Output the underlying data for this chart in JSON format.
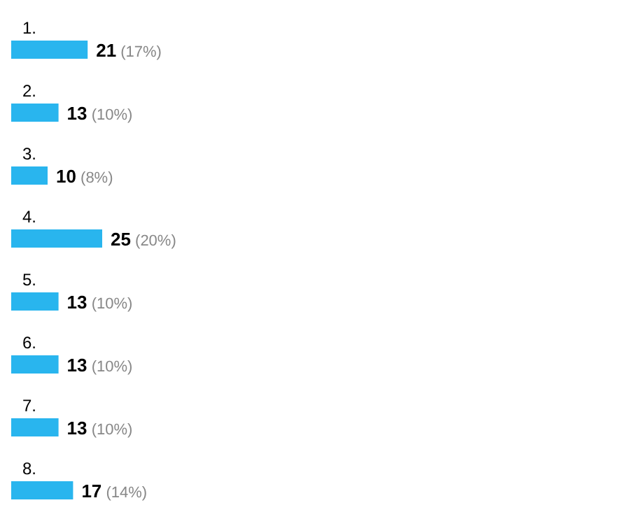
{
  "chart_data": {
    "type": "bar",
    "orientation": "horizontal",
    "categories": [
      "1.",
      "2.",
      "3.",
      "4.",
      "5.",
      "6.",
      "7.",
      "8."
    ],
    "values": [
      21,
      13,
      10,
      25,
      13,
      13,
      13,
      17
    ],
    "value_labels": [
      "21 (17%)",
      "13 (10%)",
      "10 (8%)",
      "25 (20%)",
      "13 (10%)",
      "13 (10%)",
      "13 (10%)",
      "17 (14%)"
    ],
    "color": "#29b5ee"
  }
}
